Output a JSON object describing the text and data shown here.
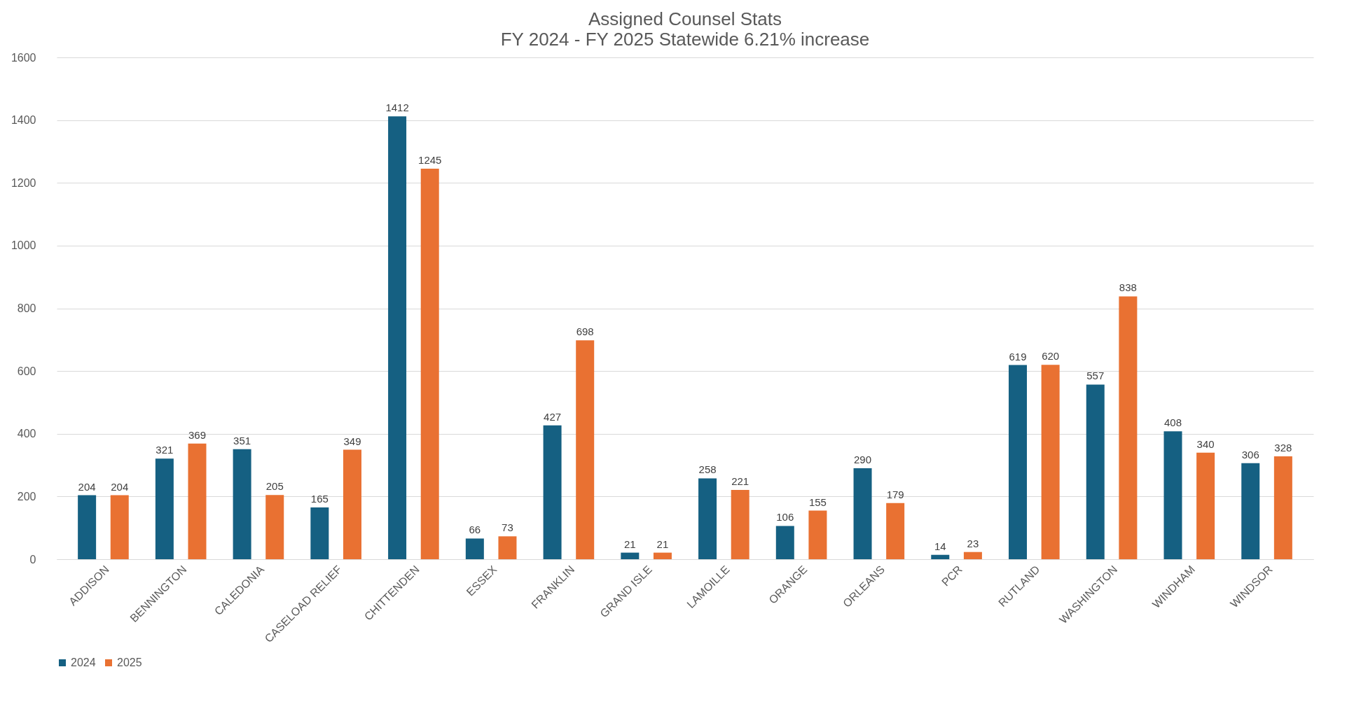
{
  "chart_data": {
    "type": "bar",
    "title": "Assigned Counsel Stats",
    "subtitle": "FY 2024 - FY 2025 Statewide 6.21% increase",
    "categories": [
      "ADDISON",
      "BENNINGTON",
      "CALEDONIA",
      "CASELOAD RELIEF",
      "CHITTENDEN",
      "ESSEX",
      "FRANKLIN",
      "GRAND ISLE",
      "LAMOILLE",
      "ORANGE",
      "ORLEANS",
      "PCR",
      "RUTLAND",
      "WASHINGTON",
      "WINDHAM",
      "WINDSOR"
    ],
    "series": [
      {
        "name": "2024",
        "color": "#156082",
        "values": [
          204,
          321,
          351,
          165,
          1412,
          66,
          427,
          21,
          258,
          106,
          290,
          14,
          619,
          557,
          408,
          306
        ]
      },
      {
        "name": "2025",
        "color": "#e97132",
        "values": [
          204,
          369,
          205,
          349,
          1245,
          73,
          698,
          21,
          221,
          155,
          179,
          23,
          620,
          838,
          340,
          328
        ]
      }
    ],
    "ylim": [
      0,
      1600
    ],
    "yticks": [
      0,
      200,
      400,
      600,
      800,
      1000,
      1200,
      1400,
      1600
    ],
    "grid": "y",
    "legend": "bottom",
    "data_labels": true
  }
}
